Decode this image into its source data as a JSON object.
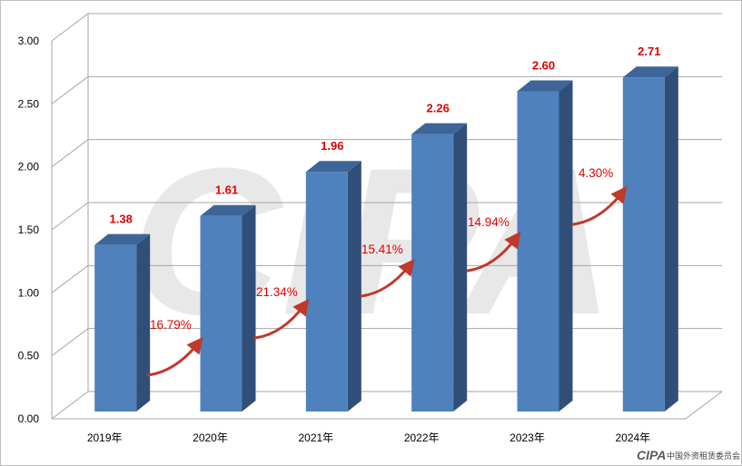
{
  "chart_data": {
    "type": "bar",
    "categories": [
      "2019年",
      "2020年",
      "2021年",
      "2022年",
      "2023年",
      "2024年"
    ],
    "values": [
      1.38,
      1.61,
      1.96,
      2.26,
      2.6,
      2.71
    ],
    "value_labels": [
      "1.38",
      "1.61",
      "1.96",
      "2.26",
      "2.60",
      "2.71"
    ],
    "growth_rates": [
      "16.79%",
      "21.34%",
      "15.41%",
      "14.94%",
      "4.30%"
    ],
    "yticks": [
      "0.00",
      "0.50",
      "1.00",
      "1.50",
      "2.00",
      "2.50",
      "3.00"
    ],
    "ylim": [
      0,
      3.0
    ],
    "grid": true,
    "bar_style": "3d",
    "legend": "none",
    "title": "",
    "xlabel": "",
    "ylabel": ""
  },
  "colors": {
    "bar_front": "#4f81bd",
    "bar_side": "#2f4f78",
    "bar_top": "#3d6598",
    "value_label": "#e00000",
    "growth_label": "#e00000",
    "arrow": "#c0392b",
    "grid": "#a6a6a6"
  },
  "watermark": {
    "text": "CIPA"
  },
  "footer": {
    "logo_text": "CIPA",
    "org_name": "中国外资租赁委员会"
  }
}
